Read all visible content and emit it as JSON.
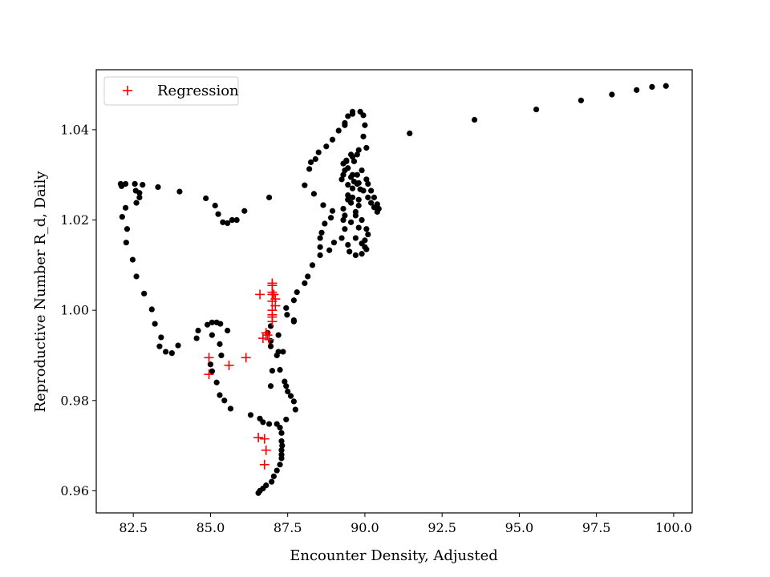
{
  "chart_data": {
    "type": "scatter",
    "title": "",
    "xlabel": "Encounter Density, Adjusted",
    "ylabel": "Reproductive Number R_d, Daily",
    "xlim": [
      81.3,
      100.6
    ],
    "ylim": [
      0.9551,
      1.0533
    ],
    "xticks": [
      82.5,
      85.0,
      87.5,
      90.0,
      92.5,
      95.0,
      97.5,
      100.0
    ],
    "xtick_labels": [
      "82.5",
      "85.0",
      "87.5",
      "90.0",
      "92.5",
      "95.0",
      "97.5",
      "100.0"
    ],
    "yticks": [
      0.96,
      0.98,
      1.0,
      1.02,
      1.04
    ],
    "ytick_labels": [
      "0.96",
      "0.98",
      "1.00",
      "1.02",
      "1.04"
    ],
    "grid": false,
    "legend": {
      "position": "top-left",
      "entries": [
        "Regression"
      ]
    },
    "series": [
      {
        "marker": "dot",
        "color": "#000000",
        "points": [
          [
            82.09,
            1.028
          ],
          [
            82.12,
            1.0275
          ],
          [
            82.25,
            1.028
          ],
          [
            82.14,
            1.0207
          ],
          [
            82.25,
            1.0227
          ],
          [
            82.6,
            1.0238
          ],
          [
            82.3,
            1.018
          ],
          [
            82.27,
            1.015
          ],
          [
            82.48,
            1.0112
          ],
          [
            82.6,
            1.0075
          ],
          [
            82.85,
            1.0037
          ],
          [
            83.1,
            1.0002
          ],
          [
            83.2,
            0.997
          ],
          [
            83.4,
            0.994
          ],
          [
            83.35,
            0.992
          ],
          [
            83.55,
            0.9908
          ],
          [
            83.75,
            0.9905
          ],
          [
            83.95,
            0.9922
          ],
          [
            84.55,
            0.9938
          ],
          [
            84.6,
            0.9955
          ],
          [
            84.9,
            0.9968
          ],
          [
            85.05,
            0.9973
          ],
          [
            85.2,
            0.9973
          ],
          [
            85.32,
            0.997
          ],
          [
            85.55,
            0.9955
          ],
          [
            85.05,
            0.9945
          ],
          [
            85.3,
            0.9925
          ],
          [
            85.35,
            0.99
          ],
          [
            85.0,
            0.988
          ],
          [
            85.05,
            0.9865
          ],
          [
            85.2,
            0.984
          ],
          [
            85.3,
            0.9812
          ],
          [
            85.45,
            0.98
          ],
          [
            85.65,
            0.9782
          ],
          [
            86.3,
            0.9768
          ],
          [
            86.6,
            0.976
          ],
          [
            86.7,
            0.9752
          ],
          [
            86.9,
            0.9748
          ],
          [
            87.15,
            0.9748
          ],
          [
            87.45,
            0.9758
          ],
          [
            87.75,
            0.978
          ],
          [
            87.7,
            0.9798
          ],
          [
            87.6,
            0.981
          ],
          [
            87.5,
            0.982
          ],
          [
            87.45,
            0.9832
          ],
          [
            87.4,
            0.9842
          ],
          [
            87.25,
            0.9868
          ],
          [
            87.15,
            0.99
          ],
          [
            86.95,
            0.9832
          ],
          [
            87.0,
            0.9866
          ],
          [
            86.95,
            0.992
          ],
          [
            86.95,
            0.9932
          ],
          [
            86.85,
            0.995
          ],
          [
            86.95,
            0.9965
          ],
          [
            87.2,
            0.9945
          ],
          [
            87.2,
            0.9908
          ],
          [
            87.35,
            0.9908
          ],
          [
            87.7,
            0.9975
          ],
          [
            87.7,
            0.9978
          ],
          [
            87.48,
            0.999
          ],
          [
            87.45,
            1.0005
          ],
          [
            87.7,
            1.0022
          ],
          [
            87.8,
            1.004
          ],
          [
            88.05,
            1.006
          ],
          [
            88.15,
            1.0075
          ],
          [
            88.3,
            1.01
          ],
          [
            88.55,
            1.0122
          ],
          [
            88.85,
            1.0133
          ],
          [
            89.0,
            1.015
          ],
          [
            88.55,
            1.014
          ],
          [
            88.55,
            1.016
          ],
          [
            88.6,
            1.0172
          ],
          [
            88.7,
            1.0192
          ],
          [
            88.9,
            1.0205
          ],
          [
            88.95,
            1.022
          ],
          [
            88.65,
            1.0233
          ],
          [
            88.35,
            1.0258
          ],
          [
            88.05,
            1.0277
          ],
          [
            88.2,
            1.0313
          ],
          [
            88.25,
            1.0328
          ],
          [
            88.4,
            1.0335
          ],
          [
            88.5,
            1.035
          ],
          [
            88.75,
            1.0363
          ],
          [
            88.95,
            1.0378
          ],
          [
            89.15,
            1.0398
          ],
          [
            89.35,
            1.0415
          ],
          [
            89.45,
            1.043
          ],
          [
            89.6,
            1.044
          ],
          [
            89.85,
            1.044
          ],
          [
            89.95,
            1.0432
          ],
          [
            90.0,
            1.041
          ],
          [
            89.95,
            1.0385
          ],
          [
            90.05,
            1.036
          ],
          [
            89.8,
            1.0355
          ],
          [
            89.6,
            1.034
          ],
          [
            89.4,
            1.0332
          ],
          [
            89.3,
            1.0325
          ],
          [
            89.45,
            1.0315
          ],
          [
            89.6,
            1.03
          ],
          [
            89.3,
            1.03
          ],
          [
            89.25,
            1.029
          ],
          [
            89.45,
            1.0278
          ],
          [
            89.6,
            1.027
          ],
          [
            89.45,
            1.0255
          ],
          [
            89.55,
            1.0238
          ],
          [
            89.8,
            1.0245
          ],
          [
            89.95,
            1.0265
          ],
          [
            89.8,
            1.0282
          ],
          [
            89.75,
            1.03
          ],
          [
            89.85,
            1.0268
          ],
          [
            89.8,
            1.0232
          ],
          [
            89.7,
            1.021
          ],
          [
            89.55,
            1.0195
          ],
          [
            89.8,
            1.0183
          ],
          [
            89.7,
            1.016
          ],
          [
            89.9,
            1.0148
          ],
          [
            90.05,
            1.0135
          ],
          [
            90.0,
            1.0155
          ],
          [
            90.1,
            1.0168
          ],
          [
            90.0,
            1.014
          ],
          [
            89.9,
            1.0125
          ],
          [
            89.7,
            1.0122
          ],
          [
            89.5,
            1.013
          ],
          [
            89.45,
            1.0145
          ],
          [
            89.25,
            1.016
          ],
          [
            89.35,
            1.018
          ],
          [
            89.3,
            1.02
          ],
          [
            89.35,
            1.021
          ],
          [
            89.3,
            1.0225
          ],
          [
            89.45,
            1.0245
          ],
          [
            89.6,
            1.025
          ],
          [
            89.7,
            1.0218
          ],
          [
            89.9,
            1.02
          ],
          [
            90.05,
            1.018
          ],
          [
            89.4,
            1.033
          ],
          [
            89.55,
            1.0345
          ],
          [
            89.75,
            1.0345
          ],
          [
            89.35,
            1.031
          ],
          [
            89.35,
            1.041
          ],
          [
            89.6,
            1.0435
          ],
          [
            89.55,
            1.0295
          ],
          [
            89.65,
            1.033
          ],
          [
            89.65,
            1.0285
          ],
          [
            89.75,
            1.028
          ],
          [
            89.9,
            1.031
          ],
          [
            90.05,
            1.029
          ],
          [
            90.1,
            1.028
          ],
          [
            90.2,
            1.0265
          ],
          [
            90.3,
            1.025
          ],
          [
            90.4,
            1.0235
          ],
          [
            90.45,
            1.0225
          ],
          [
            90.4,
            1.0218
          ],
          [
            90.3,
            1.0228
          ],
          [
            90.2,
            1.0238
          ],
          [
            90.1,
            1.025
          ],
          [
            91.45,
            1.0392
          ],
          [
            93.55,
            1.0422
          ],
          [
            95.55,
            1.0445
          ],
          [
            97.0,
            1.0465
          ],
          [
            98.0,
            1.0478
          ],
          [
            98.8,
            1.0488
          ],
          [
            99.3,
            1.0495
          ],
          [
            99.75,
            1.0497
          ],
          [
            82.55,
            1.028
          ],
          [
            82.58,
            1.0265
          ],
          [
            82.7,
            1.026
          ],
          [
            82.7,
            1.025
          ],
          [
            82.8,
            1.0278
          ],
          [
            83.3,
            1.0273
          ],
          [
            84.0,
            1.0263
          ],
          [
            84.85,
            1.0248
          ],
          [
            85.15,
            1.0232
          ],
          [
            85.25,
            1.0213
          ],
          [
            85.4,
            1.0195
          ],
          [
            85.55,
            1.0193
          ],
          [
            85.7,
            1.02
          ],
          [
            85.85,
            1.02
          ],
          [
            86.1,
            1.022
          ],
          [
            86.9,
            1.025
          ],
          [
            87.25,
            0.974
          ],
          [
            87.3,
            0.9728
          ],
          [
            87.3,
            0.971
          ],
          [
            87.32,
            0.97
          ],
          [
            87.3,
            0.969
          ],
          [
            87.3,
            0.968
          ],
          [
            87.3,
            0.9672
          ],
          [
            87.25,
            0.9658
          ],
          [
            87.15,
            0.9645
          ],
          [
            87.05,
            0.9632
          ],
          [
            86.98,
            0.962
          ],
          [
            86.8,
            0.9612
          ],
          [
            86.7,
            0.9605
          ],
          [
            86.6,
            0.96
          ],
          [
            86.55,
            0.9595
          ]
        ]
      },
      {
        "name": "Regression",
        "marker": "plus",
        "color": "#ff0000",
        "points": [
          [
            86.6,
            1.0035
          ],
          [
            87.0,
            1.006
          ],
          [
            87.0,
            1.0055
          ],
          [
            87.0,
            1.004
          ],
          [
            87.0,
            1.0035
          ],
          [
            87.05,
            1.0035
          ],
          [
            87.1,
            1.0025
          ],
          [
            87.0,
            1.002
          ],
          [
            87.1,
            1.001
          ],
          [
            87.0,
            1.0
          ],
          [
            87.0,
            0.999
          ],
          [
            87.0,
            0.9985
          ],
          [
            87.0,
            0.9975
          ],
          [
            86.8,
            0.995
          ],
          [
            86.85,
            0.9945
          ],
          [
            86.7,
            0.9938
          ],
          [
            86.9,
            0.9935
          ],
          [
            84.95,
            0.9895
          ],
          [
            86.15,
            0.9895
          ],
          [
            85.6,
            0.9878
          ],
          [
            84.95,
            0.9858
          ],
          [
            86.55,
            0.9718
          ],
          [
            86.75,
            0.9715
          ],
          [
            86.8,
            0.969
          ],
          [
            86.75,
            0.9658
          ]
        ]
      }
    ]
  }
}
